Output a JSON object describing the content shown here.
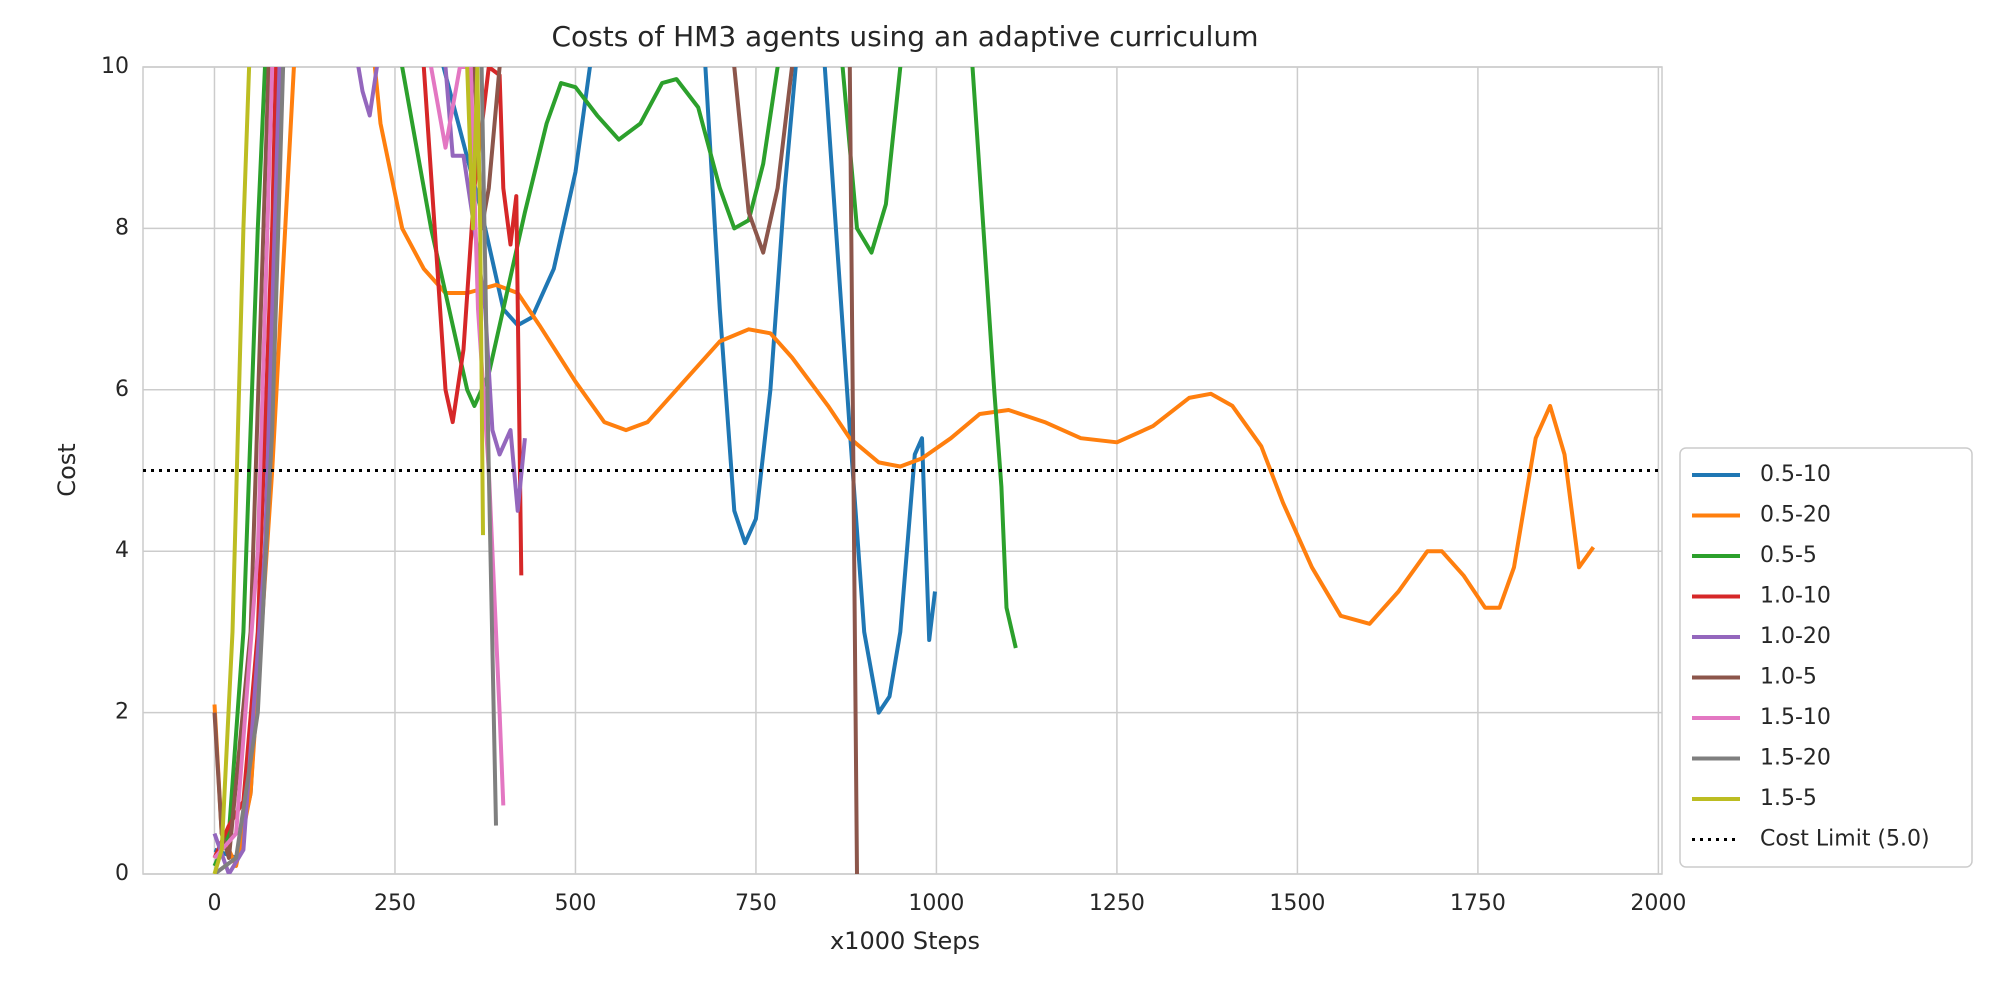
{
  "chart_data": {
    "type": "line",
    "title": "Costs of HM3 agents using an adaptive curriculum",
    "x_label": "x1000 Steps",
    "y_label": "Cost",
    "xlim": [
      -99,
      2005
    ],
    "ylim": [
      0,
      10
    ],
    "xticks": [
      0,
      250,
      500,
      750,
      1000,
      1250,
      1500,
      1750,
      2000
    ],
    "yticks": [
      0,
      2,
      4,
      6,
      8,
      10
    ],
    "grid": true,
    "legend": "lower right",
    "reference_line": {
      "value": 5,
      "label": "Cost Limit (5.0)",
      "color": "#000000"
    },
    "series": [
      {
        "name": "0.5-10",
        "color": "#1f77b4",
        "x": [
          0,
          30,
          50,
          70,
          90,
          100,
          200,
          370,
          400,
          420,
          440,
          470,
          500,
          520,
          550,
          650,
          680,
          700,
          720,
          735,
          750,
          770,
          790,
          805,
          830,
          880,
          900,
          920,
          935,
          950,
          970,
          980,
          990,
          998
        ],
        "values": [
          0.3,
          0.2,
          1,
          4,
          9,
          12,
          14,
          8.2,
          7,
          6.8,
          6.9,
          7.5,
          8.7,
          10,
          13,
          13,
          10,
          7,
          4.5,
          4.1,
          4.4,
          6,
          8.5,
          10,
          12,
          5.5,
          3,
          2,
          2.2,
          3,
          5.2,
          5.4,
          2.9,
          3.5
        ]
      },
      {
        "name": "0.5-20",
        "color": "#ff7f0e",
        "x": [
          0,
          10,
          30,
          50,
          80,
          110,
          150,
          200,
          230,
          260,
          290,
          320,
          350,
          390,
          420,
          450,
          500,
          540,
          570,
          600,
          650,
          700,
          740,
          770,
          800,
          850,
          880,
          920,
          950,
          980,
          1020,
          1060,
          1100,
          1150,
          1200,
          1250,
          1300,
          1350,
          1380,
          1410,
          1450,
          1480,
          1520,
          1560,
          1600,
          1640,
          1680,
          1700,
          1730,
          1760,
          1780,
          1800,
          1830,
          1850,
          1870,
          1890,
          1910
        ],
        "values": [
          2.1,
          0.5,
          0.1,
          1,
          5,
          10,
          13,
          12,
          9.3,
          8,
          7.5,
          7.2,
          7.2,
          7.3,
          7.2,
          6.8,
          6.1,
          5.6,
          5.5,
          5.6,
          6.1,
          6.6,
          6.75,
          6.7,
          6.4,
          5.8,
          5.4,
          5.1,
          5.05,
          5.15,
          5.4,
          5.7,
          5.75,
          5.6,
          5.4,
          5.35,
          5.55,
          5.9,
          5.95,
          5.8,
          5.3,
          4.6,
          3.8,
          3.2,
          3.1,
          3.5,
          4,
          4,
          3.7,
          3.3,
          3.3,
          3.8,
          5.4,
          5.8,
          5.2,
          3.8,
          4.05
        ]
      },
      {
        "name": "0.5-5",
        "color": "#2ca02c",
        "x": [
          0,
          20,
          40,
          60,
          80,
          160,
          260,
          280,
          300,
          330,
          350,
          360,
          380,
          400,
          430,
          460,
          480,
          500,
          530,
          560,
          590,
          620,
          640,
          670,
          700,
          720,
          740,
          760,
          780,
          800,
          840,
          870,
          890,
          910,
          930,
          950,
          970,
          1020,
          1050,
          1065,
          1080,
          1090,
          1097,
          1110
        ],
        "values": [
          0.1,
          0.5,
          3,
          8,
          12,
          14,
          10,
          9,
          8,
          6.8,
          6,
          5.8,
          6.2,
          7,
          8.2,
          9.3,
          9.8,
          9.75,
          9.4,
          9.1,
          9.3,
          9.8,
          9.85,
          9.5,
          8.5,
          8,
          8.1,
          8.8,
          10,
          12,
          11,
          10,
          8,
          7.7,
          8.3,
          10,
          13,
          13,
          10,
          8,
          6,
          4.8,
          3.3,
          2.8
        ]
      },
      {
        "name": "1.0-10",
        "color": "#d62728",
        "x": [
          0,
          20,
          40,
          60,
          80,
          90,
          200,
          290,
          305,
          320,
          330,
          345,
          360,
          380,
          395,
          400,
          410,
          418,
          425
        ],
        "values": [
          0.2,
          0.6,
          0.9,
          3,
          8,
          12,
          14,
          10,
          8,
          6,
          5.6,
          6.5,
          8.5,
          10,
          9.9,
          8.5,
          7.8,
          8.4,
          3.7
        ]
      },
      {
        "name": "1.0-20",
        "color": "#9467bd",
        "x": [
          0,
          20,
          40,
          70,
          90,
          150,
          190,
          205,
          215,
          225,
          235,
          290,
          320,
          330,
          345,
          360,
          375,
          385,
          395,
          410,
          420,
          430
        ],
        "values": [
          0.5,
          0,
          0.3,
          4,
          10,
          13,
          10.5,
          9.7,
          9.4,
          10,
          11,
          12,
          10,
          8.9,
          8.9,
          8,
          7,
          5.5,
          5.2,
          5.5,
          4.5,
          5.4
        ]
      },
      {
        "name": "1.0-5",
        "color": "#8c564b",
        "x": [
          0,
          10,
          20,
          50,
          75,
          200,
          360,
          370,
          380,
          395,
          500,
          720,
          740,
          760,
          780,
          800,
          850,
          880,
          885,
          890
        ],
        "values": [
          2,
          0.5,
          0.2,
          3,
          10,
          14,
          10,
          8,
          8.5,
          10,
          14,
          10,
          8.2,
          7.7,
          8.5,
          10,
          13,
          10,
          5,
          0
        ]
      },
      {
        "name": "1.5-10",
        "color": "#e377c2",
        "x": [
          0,
          30,
          60,
          80,
          200,
          300,
          320,
          340,
          355,
          365,
          380,
          395,
          400
        ],
        "values": [
          0.2,
          0.5,
          4,
          10,
          14,
          10,
          9,
          10,
          10,
          7,
          5,
          2,
          0.85
        ]
      },
      {
        "name": "1.5-20",
        "color": "#7f7f7f",
        "x": [
          0,
          30,
          60,
          80,
          95,
          200,
          370,
          380,
          390
        ],
        "values": [
          0,
          0.2,
          2,
          5.5,
          10,
          14,
          10,
          5,
          0.6
        ]
      },
      {
        "name": "1.5-5",
        "color": "#bcbd22",
        "x": [
          0,
          10,
          25,
          40,
          48,
          200,
          350,
          358,
          364,
          368,
          372
        ],
        "values": [
          0,
          0.3,
          3,
          8,
          10,
          14,
          10,
          8,
          10,
          8,
          4.2
        ]
      }
    ]
  }
}
